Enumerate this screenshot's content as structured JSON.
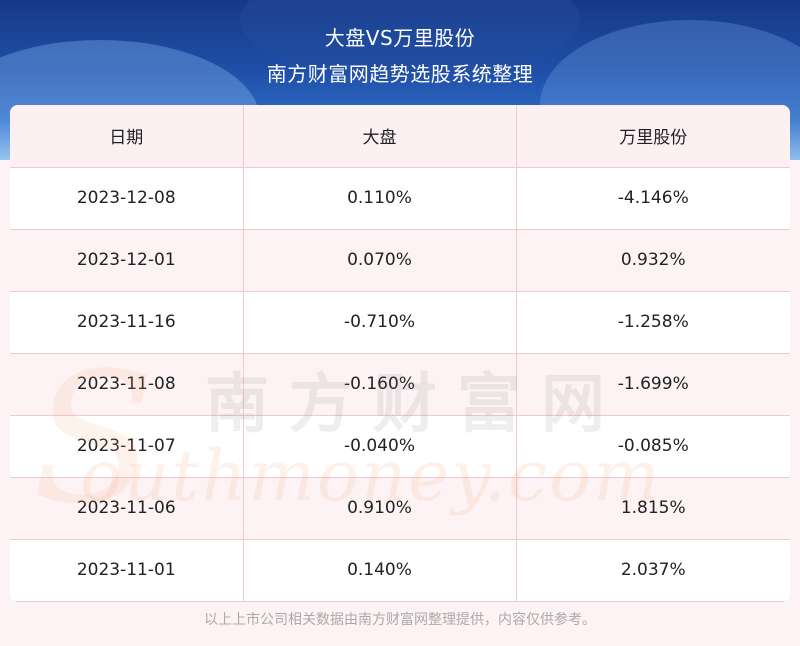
{
  "header": {
    "title": "大盘VS万里股份",
    "subtitle": "南方财富网趋势选股系统整理"
  },
  "table": {
    "columns": [
      "日期",
      "大盘",
      "万里股份"
    ],
    "rows": [
      [
        "2023-12-08",
        "0.110%",
        "-4.146%"
      ],
      [
        "2023-12-01",
        "0.070%",
        "0.932%"
      ],
      [
        "2023-11-16",
        "-0.710%",
        "-1.258%"
      ],
      [
        "2023-11-08",
        "-0.160%",
        "-1.699%"
      ],
      [
        "2023-11-07",
        "-0.040%",
        "-0.085%"
      ],
      [
        "2023-11-06",
        "0.910%",
        "1.815%"
      ],
      [
        "2023-11-01",
        "0.140%",
        "2.037%"
      ]
    ]
  },
  "watermark": {
    "cn": "南方财富网",
    "en": "outhmoney.com",
    "letter": "S"
  },
  "footer": {
    "note": "以上上市公司相关数据由南方财富网整理提供，内容仅供参考。"
  }
}
